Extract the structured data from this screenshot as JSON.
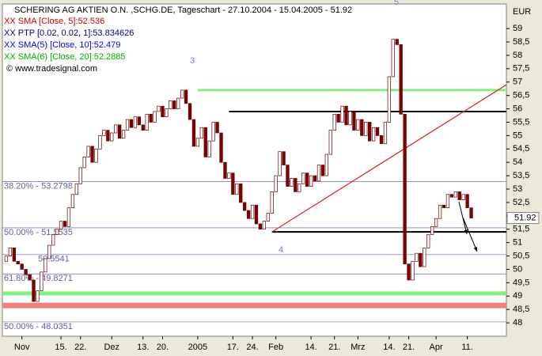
{
  "chart_data": {
    "type": "candlestick",
    "title": "SCHERING AG AKTIEN O.N. ,SCHG.DE, Tageschart - 27.10.2004 - 15.04.2005 - 51.92",
    "legend": [
      {
        "text": "XX SMA [Close, 5]:52.536",
        "color": "#d00000"
      },
      {
        "text": "XX PTP [0.02, 0.02, 1]:53.834626",
        "color": "#000080"
      },
      {
        "text": "XX SMA(5) [Close, 10]:52.479",
        "color": "#0000ff"
      },
      {
        "text": "XX SMA(6) [Close, 20]:52.2885",
        "color": "#00b000"
      }
    ],
    "copyright": "© www.tradesignal.com",
    "currency": "EUR",
    "wave_labels": [
      "3",
      "4",
      "5"
    ],
    "up_color": "#ffffff",
    "down_color": "#800000",
    "open": [
      50.3,
      50.5,
      50.8,
      50.3,
      50.2,
      50.0,
      49.8,
      49.6,
      48.8,
      49.2,
      49.9,
      50.4,
      50.9,
      51.3,
      51.5,
      51.8,
      51.6,
      52.3,
      52.8,
      53.2,
      53.8,
      54.2,
      54.6,
      54.0,
      54.5,
      55.0,
      55.2,
      54.8,
      55.1,
      55.4,
      54.9,
      55.2,
      55.6,
      55.3,
      55.7,
      55.4,
      55.2,
      55.8,
      55.5,
      55.9,
      56.1,
      55.7,
      56.0,
      56.3,
      56.0,
      56.4,
      56.7,
      56.2,
      55.6,
      54.6,
      54.9,
      55.3,
      54.2,
      54.8,
      55.5,
      55.1,
      54.0,
      53.4,
      53.6,
      52.8,
      53.2,
      52.5,
      52.2,
      51.9,
      52.4,
      51.7,
      51.5,
      51.8,
      52.1,
      52.9,
      53.5,
      54.4,
      53.9,
      53.1,
      53.4,
      52.9,
      53.2,
      53.6,
      53.1,
      53.5,
      53.3,
      53.9,
      53.5,
      54.3,
      55.2,
      55.8,
      55.5,
      56.1,
      55.4,
      55.9,
      55.2,
      55.6,
      55.0,
      55.5,
      54.8,
      55.3,
      55.0,
      54.7,
      55.5,
      57.2,
      58.6,
      58.4,
      55.8,
      50.2,
      49.6,
      50.3,
      50.6,
      50.1,
      50.8,
      51.3,
      51.6,
      51.9,
      52.4,
      52.3,
      52.8,
      52.7,
      52.9,
      52.6,
      52.8,
      52.3
    ],
    "close": [
      50.5,
      50.8,
      50.3,
      50.2,
      50.0,
      49.8,
      49.6,
      48.8,
      49.2,
      49.9,
      50.4,
      50.9,
      51.3,
      51.5,
      51.8,
      51.6,
      52.3,
      52.8,
      53.2,
      53.8,
      54.2,
      54.6,
      54.0,
      54.5,
      55.0,
      55.2,
      54.8,
      55.1,
      55.4,
      54.9,
      55.2,
      55.6,
      55.3,
      55.7,
      55.4,
      55.2,
      55.8,
      55.5,
      55.9,
      56.1,
      55.7,
      56.0,
      56.3,
      56.0,
      56.4,
      56.7,
      56.2,
      55.6,
      54.6,
      54.9,
      55.3,
      54.2,
      54.8,
      55.5,
      55.1,
      54.0,
      53.4,
      53.6,
      52.8,
      53.2,
      52.5,
      52.2,
      51.9,
      52.4,
      51.7,
      51.5,
      51.8,
      52.1,
      52.9,
      53.5,
      54.4,
      53.9,
      53.1,
      53.4,
      52.9,
      53.2,
      53.6,
      53.1,
      53.5,
      53.3,
      53.9,
      53.5,
      54.3,
      55.2,
      55.8,
      55.5,
      56.1,
      55.4,
      55.9,
      55.2,
      55.6,
      55.0,
      55.5,
      54.8,
      55.3,
      55.0,
      54.7,
      55.5,
      57.2,
      58.6,
      58.4,
      55.8,
      50.2,
      49.6,
      50.3,
      50.6,
      50.1,
      50.8,
      51.3,
      51.6,
      51.9,
      52.4,
      52.3,
      52.8,
      52.7,
      52.9,
      52.6,
      52.8,
      52.3,
      51.92
    ],
    "levels": [
      {
        "label": "38.20% - 53.2798",
        "value": 53.2798
      },
      {
        "label": "50.00% - 51.5535",
        "value": 51.5535
      },
      {
        "label": "50.5541",
        "value": 50.5541
      },
      {
        "label": "61.80% - 49.8271",
        "value": 49.8271
      },
      {
        "label": "50.00% - 48.0351",
        "value": 48.0351
      }
    ],
    "lines": [
      {
        "value": 56.7,
        "from": 49,
        "color": "#80f080",
        "width": 3
      },
      {
        "value": 55.9,
        "from": 57,
        "color": "#000000",
        "width": 2
      },
      {
        "value": 51.4,
        "from": 68,
        "color": "#000000",
        "width": 2
      },
      {
        "value": 49.1,
        "from": -1,
        "color": "#80f080",
        "width": 5
      },
      {
        "value": 48.65,
        "from": -1,
        "color": "#f08080",
        "width": 7
      }
    ],
    "trend": {
      "from": [
        68,
        51.4
      ],
      "to": [
        128,
        56.9
      ],
      "color": "#e02020"
    },
    "xlim": [
      -1,
      128
    ],
    "ylim": [
      47.5,
      59.92
    ],
    "xticks": [
      {
        "value": 4,
        "label": "Nov"
      },
      {
        "value": 14,
        "label": "15."
      },
      {
        "value": 19,
        "label": "22."
      },
      {
        "value": 27,
        "label": "Dez"
      },
      {
        "value": 35,
        "label": "13."
      },
      {
        "value": 40,
        "label": "20."
      },
      {
        "value": 49,
        "label": "2005"
      },
      {
        "value": 58,
        "label": "17."
      },
      {
        "value": 63,
        "label": "24."
      },
      {
        "value": 69,
        "label": "Feb"
      },
      {
        "value": 78,
        "label": "14."
      },
      {
        "value": 84,
        "label": "21."
      },
      {
        "value": 90,
        "label": "Mrz"
      },
      {
        "value": 98,
        "label": "14."
      },
      {
        "value": 103,
        "label": "21."
      },
      {
        "value": 110,
        "label": "Apr"
      },
      {
        "value": 118,
        "label": "11."
      }
    ],
    "yticks": [
      48,
      {
        "value": 48.5,
        "label": "48,5"
      },
      49,
      {
        "value": 49.5,
        "label": "49,5"
      },
      50,
      {
        "value": 50.5,
        "label": "50,5"
      },
      51,
      {
        "value": 51.5,
        "label": "51,5"
      },
      52,
      {
        "value": 52.5,
        "label": "52,5"
      },
      53,
      {
        "value": 53.5,
        "label": "53,5"
      },
      54,
      {
        "value": 54.5,
        "label": "54,5"
      },
      55,
      {
        "value": 55.5,
        "label": "55,5"
      },
      56,
      {
        "value": 56.5,
        "label": "56,5"
      },
      57,
      {
        "value": 57.5,
        "label": "57,5"
      },
      58,
      {
        "value": 58.5,
        "label": "58,5"
      },
      59
    ]
  }
}
